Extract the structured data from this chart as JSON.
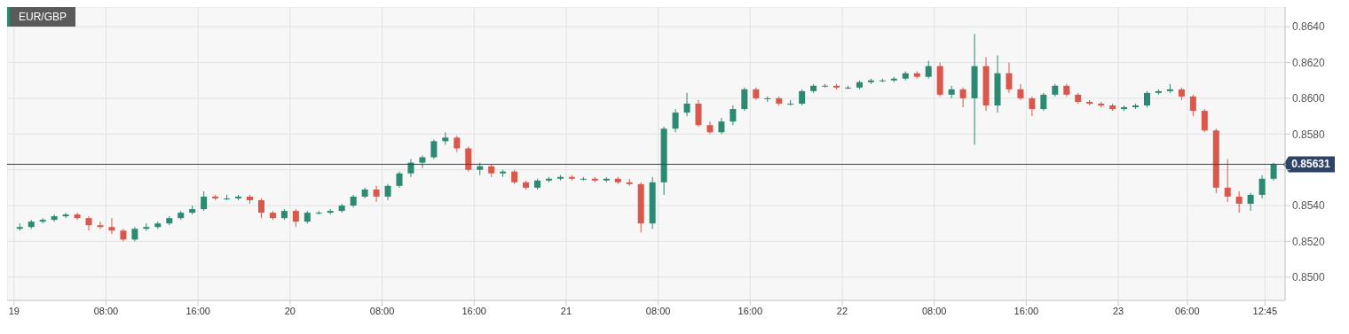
{
  "chart_data": {
    "type": "candlestick",
    "title": "EUR/GBP",
    "x": [
      "--01-19T00:30",
      "--01-19T01:30",
      "--01-19T02:30",
      "--01-19T03:30",
      "--01-19T04:30",
      "--01-19T05:30",
      "--01-19T06:30",
      "--01-19T07:30",
      "--01-19T08:30",
      "--01-19T09:30",
      "--01-19T10:30",
      "--01-19T11:30",
      "--01-19T12:30",
      "--01-19T13:30",
      "--01-19T14:30",
      "--01-19T15:30",
      "--01-19T16:30",
      "--01-19T17:30",
      "--01-19T18:30",
      "--01-19T19:30",
      "--01-19T20:30",
      "--01-19T21:30",
      "--01-19T22:30",
      "--01-19T23:30",
      "--01-20T00:30",
      "--01-20T01:30",
      "--01-20T02:30",
      "--01-20T03:30",
      "--01-20T04:30",
      "--01-20T05:30",
      "--01-20T06:30",
      "--01-20T07:30",
      "--01-20T08:30",
      "--01-20T09:30",
      "--01-20T10:30",
      "--01-20T11:30",
      "--01-20T12:30",
      "--01-20T13:30",
      "--01-20T14:30",
      "--01-20T15:30",
      "--01-20T16:30",
      "--01-20T17:30",
      "--01-20T18:30",
      "--01-20T19:30",
      "--01-20T20:30",
      "--01-20T21:30",
      "--01-20T22:30",
      "--01-20T23:30",
      "--01-21T00:30",
      "--01-21T01:30",
      "--01-21T02:30",
      "--01-21T03:30",
      "--01-21T04:30",
      "--01-21T05:30",
      "--01-21T06:30",
      "--01-21T07:30",
      "--01-21T08:30",
      "--01-21T09:30",
      "--01-21T10:30",
      "--01-21T11:30",
      "--01-21T12:30",
      "--01-21T13:30",
      "--01-21T14:30",
      "--01-21T15:30",
      "--01-21T16:30",
      "--01-21T17:30",
      "--01-21T18:30",
      "--01-21T19:30",
      "--01-21T20:30",
      "--01-21T21:30",
      "--01-21T22:30",
      "--01-21T23:30",
      "--01-22T00:30",
      "--01-22T01:30",
      "--01-22T02:30",
      "--01-22T03:30",
      "--01-22T04:30",
      "--01-22T05:30",
      "--01-22T06:30",
      "--01-22T07:30",
      "--01-22T08:30",
      "--01-22T09:30",
      "--01-22T10:30",
      "--01-22T11:30",
      "--01-22T12:30",
      "--01-22T13:30",
      "--01-22T14:30",
      "--01-22T15:30",
      "--01-22T16:30",
      "--01-22T17:30",
      "--01-22T18:30",
      "--01-22T19:30",
      "--01-22T20:30",
      "--01-22T21:30",
      "--01-22T22:30",
      "--01-22T23:30",
      "--01-23T00:30",
      "--01-23T01:30",
      "--01-23T02:30",
      "--01-23T03:30",
      "--01-23T04:30",
      "--01-23T05:30",
      "--01-23T06:30",
      "--01-23T07:30",
      "--01-23T08:30",
      "--01-23T09:30",
      "--01-23T10:30",
      "--01-23T11:30",
      "--01-23T12:30",
      "--01-23T13:30"
    ],
    "ohlc": [
      [
        0.8527,
        0.853,
        0.8526,
        0.8528
      ],
      [
        0.8528,
        0.8532,
        0.8527,
        0.8531
      ],
      [
        0.8531,
        0.8533,
        0.853,
        0.8532
      ],
      [
        0.8532,
        0.8535,
        0.8531,
        0.8534
      ],
      [
        0.8534,
        0.8536,
        0.8533,
        0.8535
      ],
      [
        0.8535,
        0.8536,
        0.8532,
        0.8533
      ],
      [
        0.8533,
        0.8534,
        0.8526,
        0.8529
      ],
      [
        0.8529,
        0.8531,
        0.8527,
        0.8528
      ],
      [
        0.8528,
        0.8533,
        0.8524,
        0.8526
      ],
      [
        0.8526,
        0.8527,
        0.852,
        0.8521
      ],
      [
        0.8521,
        0.8528,
        0.852,
        0.8527
      ],
      [
        0.8527,
        0.853,
        0.8526,
        0.8528
      ],
      [
        0.8528,
        0.8531,
        0.8527,
        0.853
      ],
      [
        0.853,
        0.8534,
        0.8529,
        0.8533
      ],
      [
        0.8533,
        0.8537,
        0.8532,
        0.8536
      ],
      [
        0.8536,
        0.854,
        0.8535,
        0.8538
      ],
      [
        0.8538,
        0.8548,
        0.8537,
        0.8545
      ],
      [
        0.8545,
        0.8546,
        0.8543,
        0.8544
      ],
      [
        0.8544,
        0.8546,
        0.8543,
        0.8544
      ],
      [
        0.8544,
        0.8546,
        0.8543,
        0.8545
      ],
      [
        0.8545,
        0.8546,
        0.8541,
        0.8543
      ],
      [
        0.8543,
        0.8544,
        0.8533,
        0.8536
      ],
      [
        0.8536,
        0.8537,
        0.8532,
        0.8533
      ],
      [
        0.8533,
        0.8538,
        0.8532,
        0.8537
      ],
      [
        0.8537,
        0.8538,
        0.8528,
        0.8531
      ],
      [
        0.8531,
        0.8537,
        0.853,
        0.8536
      ],
      [
        0.8536,
        0.8537,
        0.8535,
        0.8536
      ],
      [
        0.8536,
        0.8538,
        0.8535,
        0.8537
      ],
      [
        0.8537,
        0.8541,
        0.8536,
        0.854
      ],
      [
        0.854,
        0.8546,
        0.8539,
        0.8545
      ],
      [
        0.8545,
        0.855,
        0.8544,
        0.8549
      ],
      [
        0.8549,
        0.8551,
        0.8542,
        0.8545
      ],
      [
        0.8545,
        0.8552,
        0.8543,
        0.8551
      ],
      [
        0.8551,
        0.8559,
        0.855,
        0.8558
      ],
      [
        0.8558,
        0.8566,
        0.8556,
        0.8564
      ],
      [
        0.8564,
        0.8568,
        0.8561,
        0.8567
      ],
      [
        0.8567,
        0.8577,
        0.8566,
        0.8576
      ],
      [
        0.8576,
        0.8581,
        0.8574,
        0.8578
      ],
      [
        0.8578,
        0.8579,
        0.857,
        0.8572
      ],
      [
        0.8572,
        0.8573,
        0.8559,
        0.856
      ],
      [
        0.856,
        0.8564,
        0.8557,
        0.8562
      ],
      [
        0.8562,
        0.8563,
        0.8556,
        0.8558
      ],
      [
        0.8558,
        0.856,
        0.8556,
        0.8559
      ],
      [
        0.8559,
        0.856,
        0.8552,
        0.8553
      ],
      [
        0.8553,
        0.8554,
        0.8549,
        0.855
      ],
      [
        0.855,
        0.8555,
        0.8549,
        0.8554
      ],
      [
        0.8554,
        0.8556,
        0.8553,
        0.8555
      ],
      [
        0.8555,
        0.8557,
        0.8554,
        0.8556
      ],
      [
        0.8556,
        0.8557,
        0.8554,
        0.8555
      ],
      [
        0.8555,
        0.8556,
        0.8554,
        0.8555
      ],
      [
        0.8555,
        0.8556,
        0.8553,
        0.8554
      ],
      [
        0.8554,
        0.8556,
        0.8553,
        0.8555
      ],
      [
        0.8555,
        0.8556,
        0.8552,
        0.8553
      ],
      [
        0.8553,
        0.8555,
        0.8551,
        0.8552
      ],
      [
        0.8552,
        0.8553,
        0.8525,
        0.853
      ],
      [
        0.853,
        0.8556,
        0.8527,
        0.8553
      ],
      [
        0.8553,
        0.8584,
        0.8546,
        0.8583
      ],
      [
        0.8583,
        0.8594,
        0.8581,
        0.8592
      ],
      [
        0.8592,
        0.8603,
        0.859,
        0.8597
      ],
      [
        0.8597,
        0.8599,
        0.8584,
        0.8585
      ],
      [
        0.8585,
        0.8587,
        0.858,
        0.8581
      ],
      [
        0.8581,
        0.8589,
        0.858,
        0.8587
      ],
      [
        0.8587,
        0.8596,
        0.8585,
        0.8594
      ],
      [
        0.8594,
        0.8606,
        0.8593,
        0.8605
      ],
      [
        0.8605,
        0.8606,
        0.8599,
        0.86
      ],
      [
        0.86,
        0.8601,
        0.8598,
        0.86
      ],
      [
        0.86,
        0.8601,
        0.8596,
        0.8597
      ],
      [
        0.8597,
        0.8599,
        0.8596,
        0.8597
      ],
      [
        0.8597,
        0.8605,
        0.8596,
        0.8604
      ],
      [
        0.8604,
        0.8608,
        0.8603,
        0.8607
      ],
      [
        0.8607,
        0.8608,
        0.8606,
        0.8607
      ],
      [
        0.8607,
        0.8608,
        0.8605,
        0.8606
      ],
      [
        0.8606,
        0.8607,
        0.8605,
        0.8606
      ],
      [
        0.8606,
        0.861,
        0.8605,
        0.8609
      ],
      [
        0.8609,
        0.8611,
        0.8608,
        0.861
      ],
      [
        0.861,
        0.8611,
        0.8609,
        0.861
      ],
      [
        0.861,
        0.8612,
        0.8609,
        0.8611
      ],
      [
        0.8611,
        0.8615,
        0.861,
        0.8614
      ],
      [
        0.8614,
        0.8615,
        0.8611,
        0.8612
      ],
      [
        0.8612,
        0.8621,
        0.8611,
        0.8618
      ],
      [
        0.8618,
        0.862,
        0.8601,
        0.8602
      ],
      [
        0.8602,
        0.8607,
        0.86,
        0.8605
      ],
      [
        0.8605,
        0.8606,
        0.8595,
        0.86
      ],
      [
        0.86,
        0.8636,
        0.8574,
        0.8618
      ],
      [
        0.8618,
        0.8623,
        0.8593,
        0.8596
      ],
      [
        0.8596,
        0.8624,
        0.8592,
        0.8614
      ],
      [
        0.8614,
        0.862,
        0.8603,
        0.8605
      ],
      [
        0.8605,
        0.8608,
        0.8599,
        0.86
      ],
      [
        0.86,
        0.8601,
        0.859,
        0.8594
      ],
      [
        0.8594,
        0.8603,
        0.8593,
        0.8602
      ],
      [
        0.8602,
        0.8608,
        0.8601,
        0.8607
      ],
      [
        0.8607,
        0.8608,
        0.8601,
        0.8602
      ],
      [
        0.8602,
        0.8603,
        0.8597,
        0.8598
      ],
      [
        0.8598,
        0.8599,
        0.8596,
        0.8597
      ],
      [
        0.8597,
        0.8598,
        0.8595,
        0.8596
      ],
      [
        0.8596,
        0.8597,
        0.8593,
        0.8594
      ],
      [
        0.8594,
        0.8596,
        0.8593,
        0.8595
      ],
      [
        0.8595,
        0.8597,
        0.8594,
        0.8596
      ],
      [
        0.8596,
        0.8604,
        0.8595,
        0.8603
      ],
      [
        0.8603,
        0.8605,
        0.8602,
        0.8604
      ],
      [
        0.8604,
        0.8608,
        0.8603,
        0.8605
      ],
      [
        0.8605,
        0.8606,
        0.8599,
        0.8601
      ],
      [
        0.8601,
        0.8602,
        0.859,
        0.8593
      ],
      [
        0.8593,
        0.8594,
        0.8581,
        0.8582
      ],
      [
        0.8582,
        0.8583,
        0.8547,
        0.855
      ],
      [
        0.855,
        0.8566,
        0.8542,
        0.8545
      ],
      [
        0.8545,
        0.8548,
        0.8536,
        0.8541
      ],
      [
        0.8541,
        0.8547,
        0.8537,
        0.8546
      ],
      [
        0.8546,
        0.8557,
        0.8544,
        0.8555
      ],
      [
        0.8555,
        0.8564,
        0.8554,
        0.85631
      ]
    ],
    "xlim": [
      "--01-18T23:24",
      "--01-23T14:30"
    ],
    "xticks": [
      {
        "value": "--01-19",
        "label": "19"
      },
      {
        "value": "--01-19T08:00",
        "label": "08:00"
      },
      {
        "value": "--01-19T16:00",
        "label": "16:00"
      },
      {
        "value": "--01-20",
        "label": "20"
      },
      {
        "value": "--01-20T08:00",
        "label": "08:00"
      },
      {
        "value": "--01-20T16:00",
        "label": "16:00"
      },
      {
        "value": "--01-21",
        "label": "21"
      },
      {
        "value": "--01-21T08:00",
        "label": "08:00"
      },
      {
        "value": "--01-21T16:00",
        "label": "16:00"
      },
      {
        "value": "--01-22",
        "label": "22"
      },
      {
        "value": "--01-22T08:00",
        "label": "08:00"
      },
      {
        "value": "--01-22T16:00",
        "label": "16:00"
      },
      {
        "value": "--01-23",
        "label": "23"
      },
      {
        "value": "--01-23T06:00",
        "label": "06:00"
      },
      {
        "value": "--01-23T12:45",
        "label": "12:45"
      }
    ],
    "ylim": [
      0.8487,
      0.8651
    ],
    "yticks": [
      {
        "value": 0.85,
        "label": "0.8500"
      },
      {
        "value": 0.852,
        "label": "0.8520"
      },
      {
        "value": 0.854,
        "label": "0.8540"
      },
      {
        "value": 0.856,
        "label": null
      },
      {
        "value": 0.858,
        "label": "0.8580"
      },
      {
        "value": 0.86,
        "label": "0.8600"
      },
      {
        "value": 0.862,
        "label": "0.8620"
      },
      {
        "value": 0.864,
        "label": "0.8640"
      }
    ],
    "grid": true,
    "ref_lines": [
      {
        "axis": "y",
        "value": 0.85631,
        "label": "0.85631",
        "color": "#2d4468"
      }
    ]
  }
}
